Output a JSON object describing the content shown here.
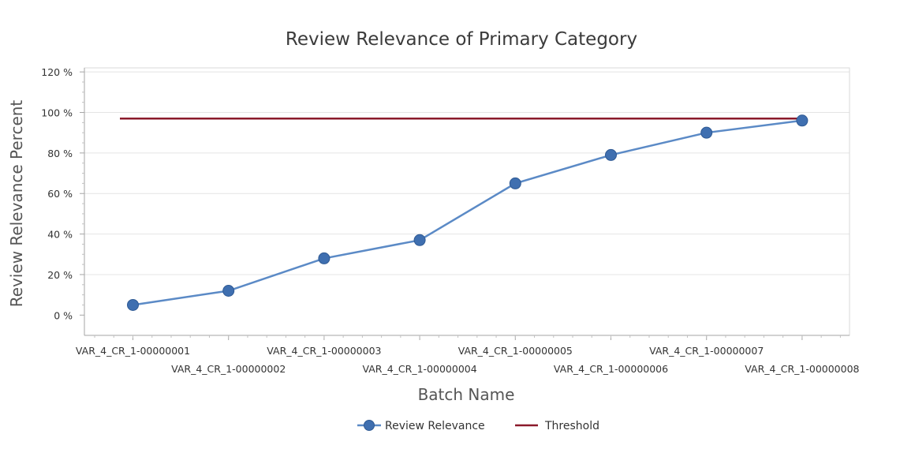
{
  "chart_data": {
    "type": "line",
    "title": "Review Relevance of Primary Category",
    "xlabel": "Batch Name",
    "ylabel": "Review Relevance Percent",
    "categories": [
      "VAR_4_CR_1-00000001",
      "VAR_4_CR_1-00000002",
      "VAR_4_CR_1-00000003",
      "VAR_4_CR_1-00000004",
      "VAR_4_CR_1-00000005",
      "VAR_4_CR_1-00000006",
      "VAR_4_CR_1-00000007",
      "VAR_4_CR_1-00000008"
    ],
    "series": [
      {
        "name": "Review Relevance",
        "values": [
          5,
          12,
          28,
          37,
          65,
          79,
          90,
          96
        ],
        "color": "#5b8ac6",
        "marker_color": "#3f6fb0"
      },
      {
        "name": "Threshold",
        "values": [
          97,
          97,
          97,
          97,
          97,
          97,
          97,
          97
        ],
        "color": "#8b1a2b"
      }
    ],
    "yticks": [
      0,
      20,
      40,
      60,
      80,
      100,
      120
    ],
    "ytick_labels": [
      "0 %",
      "20 %",
      "40 %",
      "60 %",
      "80 %",
      "100 %",
      "120 %"
    ],
    "ylim": [
      -10,
      122
    ],
    "grid": true,
    "legend_position": "bottom"
  }
}
